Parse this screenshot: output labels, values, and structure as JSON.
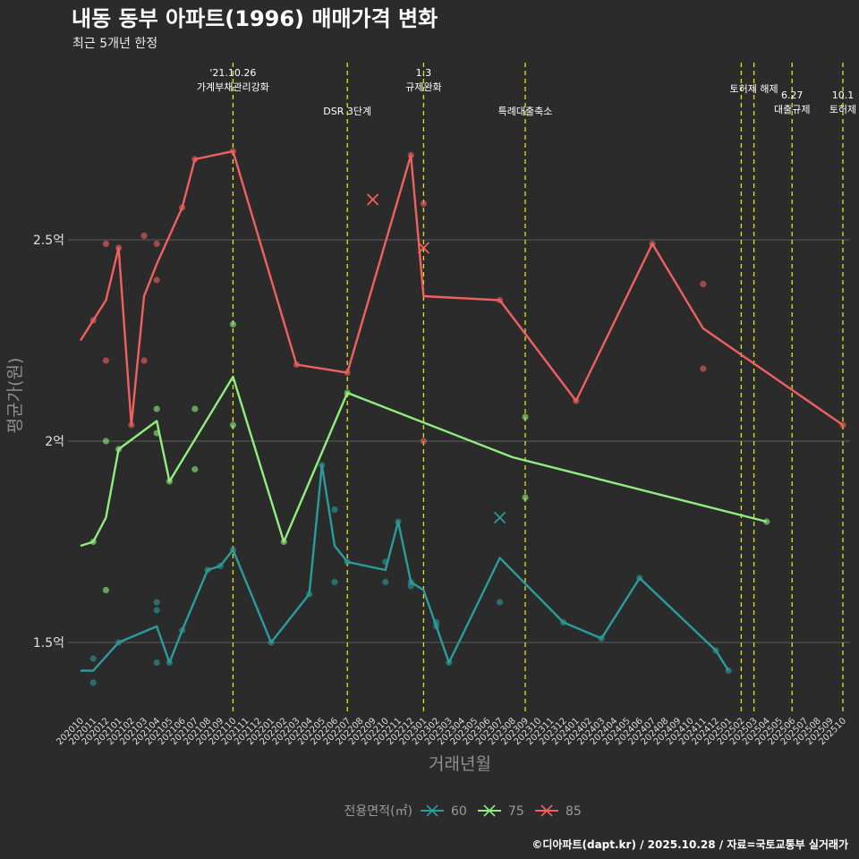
{
  "chart_data": {
    "type": "line",
    "title": "내동 동부 아파트(1996) 매매가격 변화",
    "subtitle": "최근 5개년 한정",
    "xlabel": "거래년월",
    "ylabel": "평균가(원)",
    "caption": "©디아파트(dapt.kr) / 2025.10.28 / 자료=국토교통부 실거래가",
    "legend_title": "전용면적(㎡)",
    "ylim": [
      1.3,
      2.78
    ],
    "y_ticks": [
      {
        "value": 1.5,
        "label": "1.5억"
      },
      {
        "value": 2.0,
        "label": "2억"
      },
      {
        "value": 2.5,
        "label": "2.5억"
      }
    ],
    "x_categories": [
      "202010",
      "202011",
      "202012",
      "202101",
      "202102",
      "202103",
      "202104",
      "202105",
      "202106",
      "202107",
      "202108",
      "202109",
      "202110",
      "202111",
      "202112",
      "202201",
      "202202",
      "202203",
      "202204",
      "202205",
      "202206",
      "202207",
      "202208",
      "202209",
      "202210",
      "202211",
      "202212",
      "202301",
      "202302",
      "202303",
      "202304",
      "202305",
      "202306",
      "202307",
      "202308",
      "202309",
      "202310",
      "202311",
      "202312",
      "202401",
      "202402",
      "202403",
      "202404",
      "202405",
      "202406",
      "202407",
      "202408",
      "202409",
      "202410",
      "202411",
      "202412",
      "202501",
      "202502",
      "202503",
      "202504",
      "202505",
      "202506",
      "202507",
      "202508",
      "202509",
      "202510"
    ],
    "events": [
      {
        "x": 12,
        "label": "'21.10.26\n가계부채관리강화",
        "row": 0
      },
      {
        "x": 21,
        "label": "DSR 3단계",
        "row": 1
      },
      {
        "x": 27,
        "label": "1.3\n규제완화",
        "row": 0
      },
      {
        "x": 35,
        "label": "특례대출축소",
        "row": 1
      },
      {
        "x": 52,
        "label": "",
        "row": 0
      },
      {
        "x": 53,
        "label": "토허제 해제",
        "row": 0
      },
      {
        "x": 56,
        "label": "6.27\n대출규제",
        "row": 2
      },
      {
        "x": 60,
        "label": "10.1\n토허제",
        "row": 2
      }
    ],
    "series": [
      {
        "name": "60",
        "color": "#2a9d9a",
        "line": [
          [
            0,
            1.43
          ],
          [
            1,
            1.43
          ],
          [
            3,
            1.5
          ],
          [
            6,
            1.54
          ],
          [
            7,
            1.45
          ],
          [
            8,
            1.53
          ],
          [
            10,
            1.68
          ],
          [
            11,
            1.69
          ],
          [
            12,
            1.73
          ],
          [
            15,
            1.5
          ],
          [
            18,
            1.62
          ],
          [
            19,
            1.94
          ],
          [
            20,
            1.74
          ],
          [
            21,
            1.7
          ],
          [
            24,
            1.68
          ],
          [
            25,
            1.8
          ],
          [
            26,
            1.65
          ],
          [
            27,
            1.63
          ],
          [
            28,
            1.54
          ],
          [
            29,
            1.45
          ],
          [
            33,
            1.71
          ],
          [
            38,
            1.55
          ],
          [
            41,
            1.51
          ],
          [
            44,
            1.66
          ],
          [
            50,
            1.48
          ],
          [
            51,
            1.43
          ]
        ],
        "points": [
          [
            1,
            1.4
          ],
          [
            1,
            1.46
          ],
          [
            3,
            1.5
          ],
          [
            6,
            1.45
          ],
          [
            6,
            1.58
          ],
          [
            6,
            1.6
          ],
          [
            7,
            1.45
          ],
          [
            8,
            1.53
          ],
          [
            10,
            1.68
          ],
          [
            11,
            1.69
          ],
          [
            12,
            1.73
          ],
          [
            15,
            1.5
          ],
          [
            18,
            1.62
          ],
          [
            19,
            1.94
          ],
          [
            20,
            1.65
          ],
          [
            20,
            1.83
          ],
          [
            21,
            1.7
          ],
          [
            24,
            1.65
          ],
          [
            24,
            1.7
          ],
          [
            25,
            1.8
          ],
          [
            26,
            1.64
          ],
          [
            26,
            1.65
          ],
          [
            28,
            1.55
          ],
          [
            28,
            1.54
          ],
          [
            29,
            1.45
          ],
          [
            33,
            1.6
          ],
          [
            38,
            1.55
          ],
          [
            41,
            1.51
          ],
          [
            44,
            1.66
          ],
          [
            50,
            1.48
          ],
          [
            51,
            1.43
          ]
        ],
        "crosses": [
          [
            33,
            1.81
          ]
        ]
      },
      {
        "name": "75",
        "color": "#90ee7e",
        "line": [
          [
            0,
            1.74
          ],
          [
            1,
            1.75
          ],
          [
            2,
            1.81
          ],
          [
            3,
            1.98
          ],
          [
            6,
            2.05
          ],
          [
            7,
            1.9
          ],
          [
            12,
            2.16
          ],
          [
            16,
            1.75
          ],
          [
            21,
            2.12
          ],
          [
            34,
            1.96
          ],
          [
            54,
            1.8
          ]
        ],
        "points": [
          [
            1,
            1.75
          ],
          [
            2,
            1.63
          ],
          [
            2,
            2.0
          ],
          [
            3,
            1.98
          ],
          [
            6,
            2.02
          ],
          [
            6,
            2.08
          ],
          [
            7,
            1.9
          ],
          [
            9,
            1.93
          ],
          [
            9,
            2.08
          ],
          [
            12,
            2.04
          ],
          [
            12,
            2.29
          ],
          [
            16,
            1.75
          ],
          [
            21,
            2.12
          ],
          [
            35,
            1.86
          ],
          [
            35,
            2.06
          ],
          [
            54,
            1.8
          ]
        ],
        "crosses": []
      },
      {
        "name": "85",
        "color": "#f06060",
        "line": [
          [
            0,
            2.25
          ],
          [
            1,
            2.3
          ],
          [
            2,
            2.35
          ],
          [
            3,
            2.48
          ],
          [
            4,
            2.04
          ],
          [
            5,
            2.36
          ],
          [
            6,
            2.44
          ],
          [
            8,
            2.58
          ],
          [
            9,
            2.7
          ],
          [
            12,
            2.72
          ],
          [
            17,
            2.19
          ],
          [
            21,
            2.17
          ],
          [
            26,
            2.71
          ],
          [
            27,
            2.36
          ],
          [
            33,
            2.35
          ],
          [
            39,
            2.1
          ],
          [
            45,
            2.49
          ],
          [
            49,
            2.28
          ],
          [
            60,
            2.04
          ]
        ],
        "points": [
          [
            1,
            2.3
          ],
          [
            2,
            2.2
          ],
          [
            2,
            2.49
          ],
          [
            3,
            2.48
          ],
          [
            4,
            2.04
          ],
          [
            5,
            2.2
          ],
          [
            5,
            2.51
          ],
          [
            6,
            2.4
          ],
          [
            6,
            2.49
          ],
          [
            8,
            2.58
          ],
          [
            9,
            2.7
          ],
          [
            12,
            2.72
          ],
          [
            17,
            2.19
          ],
          [
            21,
            2.17
          ],
          [
            26,
            2.71
          ],
          [
            27,
            2.0
          ],
          [
            27,
            2.59
          ],
          [
            33,
            2.35
          ],
          [
            39,
            2.1
          ],
          [
            45,
            2.49
          ],
          [
            49,
            2.18
          ],
          [
            49,
            2.39
          ],
          [
            60,
            2.04
          ]
        ],
        "crosses": [
          [
            23,
            2.6
          ],
          [
            27,
            2.48
          ]
        ]
      }
    ]
  }
}
